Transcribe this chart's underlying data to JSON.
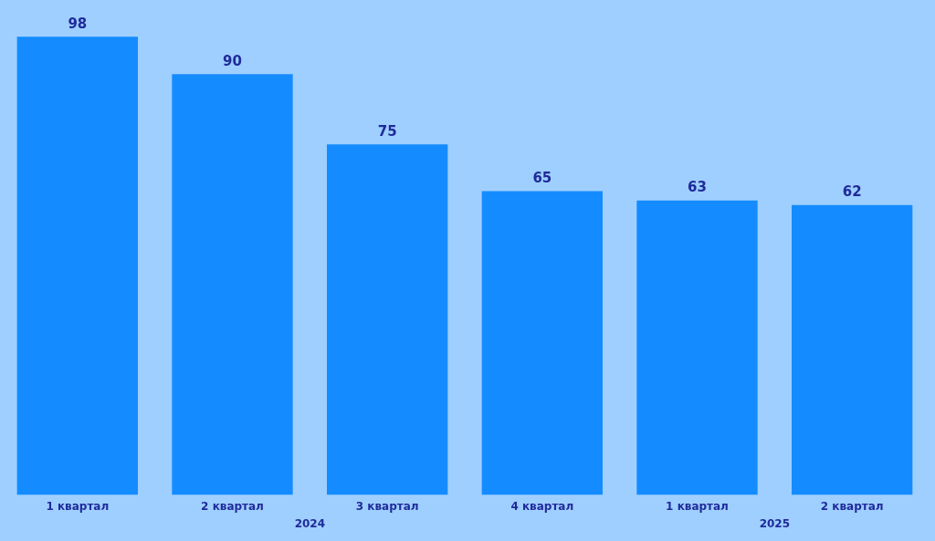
{
  "chart_data": {
    "type": "bar",
    "categories": [
      "1 квартал",
      "2 квартал",
      "3 квартал",
      "4 квартал",
      "1 квартал",
      "2 квартал"
    ],
    "values": [
      98,
      90,
      75,
      65,
      63,
      62
    ],
    "color": "#148cff",
    "data_labels": true,
    "grid": false,
    "legend": false,
    "annotations": [
      "2024",
      "2025"
    ]
  }
}
